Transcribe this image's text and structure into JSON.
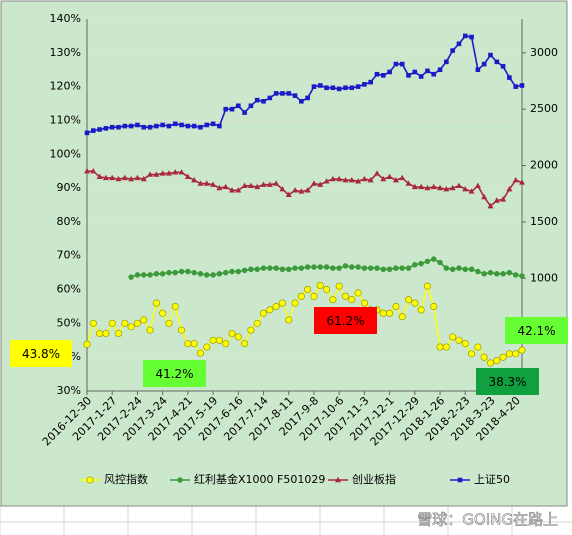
{
  "chart_data": {
    "type": "line",
    "categories": [
      "2016-12-30",
      null,
      null,
      null,
      "2017-1-27",
      null,
      null,
      null,
      "2017-2-24",
      null,
      null,
      null,
      "2017-3-24",
      null,
      null,
      null,
      "2017-4-21",
      null,
      null,
      null,
      "2017-5-19",
      null,
      null,
      null,
      "2017-6-16",
      null,
      null,
      null,
      "2017-7-14",
      null,
      null,
      null,
      "2017-8-11",
      null,
      null,
      null,
      "2017-9-8",
      null,
      null,
      null,
      "2017-10-6",
      null,
      null,
      null,
      "2017-11-3",
      null,
      null,
      null,
      "2017-12-1",
      null,
      null,
      null,
      "2017-12-29",
      null,
      null,
      null,
      "2018-1-26",
      null,
      null,
      null,
      "2018-2-23",
      null,
      null,
      null,
      "2018-3-23",
      null,
      null,
      null,
      "2018-4-20",
      null
    ],
    "ylim": [
      30,
      140
    ],
    "yticks": [
      {
        "value": 30,
        "label": "30%"
      },
      {
        "value": 40,
        "label": "40%"
      },
      {
        "value": 50,
        "label": "50%"
      },
      {
        "value": 60,
        "label": "60%"
      },
      {
        "value": 70,
        "label": "70%"
      },
      {
        "value": 80,
        "label": "80%"
      },
      {
        "value": 90,
        "label": "90%"
      },
      {
        "value": 100,
        "label": "100%"
      },
      {
        "value": 110,
        "label": "110%"
      },
      {
        "value": 120,
        "label": "120%"
      },
      {
        "value": 130,
        "label": "130%"
      },
      {
        "value": 140,
        "label": "140%"
      }
    ],
    "y2lim": [
      0,
      3300
    ],
    "y2ticks": [
      1000,
      1500,
      2000,
      2500,
      3000
    ],
    "grid": true,
    "legend": "bottom",
    "series": [
      {
        "name": "风控指数",
        "color": "#ffff00",
        "marker": "circle",
        "values": [
          43.8,
          50,
          47,
          47,
          50,
          47,
          50,
          49,
          50,
          51,
          48,
          56,
          53,
          50,
          55,
          48,
          44,
          44,
          41.2,
          43,
          45,
          45,
          44,
          47,
          46,
          44,
          48,
          50,
          53,
          54,
          55,
          56,
          51,
          56,
          58,
          60,
          58,
          61.2,
          60,
          57,
          61,
          58,
          57,
          59,
          56,
          54,
          54,
          53,
          53,
          55,
          52,
          57,
          56,
          54,
          61,
          55,
          43,
          43,
          46,
          45,
          44,
          41,
          43,
          40,
          38.3,
          39,
          40,
          41,
          41,
          42.1
        ]
      },
      {
        "name": "红利基金X1000 F501029",
        "color": "#3c9a3c",
        "marker": "dot",
        "axis": "y2",
        "values": [
          null,
          null,
          null,
          null,
          null,
          null,
          null,
          1010,
          1030,
          1030,
          1030,
          1040,
          1040,
          1050,
          1050,
          1060,
          1060,
          1050,
          1040,
          1030,
          1030,
          1040,
          1050,
          1060,
          1060,
          1070,
          1080,
          1080,
          1090,
          1090,
          1090,
          1080,
          1080,
          1090,
          1090,
          1100,
          1100,
          1100,
          1100,
          1090,
          1090,
          1110,
          1100,
          1100,
          1090,
          1090,
          1090,
          1080,
          1080,
          1090,
          1090,
          1090,
          1120,
          1130,
          1150,
          1170,
          1140,
          1090,
          1080,
          1090,
          1080,
          1080,
          1060,
          1040,
          1050,
          1040,
          1040,
          1050,
          1030,
          1020
        ]
      },
      {
        "name": "创业板指",
        "color": "#a8283c",
        "marker": "triangle",
        "axis": "y2",
        "values": [
          1950,
          1950,
          1900,
          1890,
          1890,
          1880,
          1890,
          1880,
          1890,
          1880,
          1920,
          1920,
          1930,
          1930,
          1940,
          1940,
          1900,
          1870,
          1840,
          1840,
          1830,
          1800,
          1810,
          1780,
          1780,
          1820,
          1820,
          1810,
          1830,
          1830,
          1840,
          1790,
          1740,
          1780,
          1770,
          1780,
          1840,
          1830,
          1860,
          1880,
          1880,
          1870,
          1870,
          1860,
          1880,
          1870,
          1930,
          1880,
          1900,
          1870,
          1890,
          1840,
          1810,
          1810,
          1800,
          1810,
          1800,
          1790,
          1800,
          1820,
          1790,
          1770,
          1820,
          1720,
          1640,
          1690,
          1700,
          1790,
          1870,
          1850
        ]
      },
      {
        "name": "上证50",
        "color": "#1a1ac8",
        "marker": "square",
        "axis": "y2",
        "values": [
          2290,
          2310,
          2320,
          2330,
          2340,
          2340,
          2350,
          2350,
          2360,
          2340,
          2340,
          2350,
          2360,
          2350,
          2370,
          2360,
          2350,
          2350,
          2340,
          2360,
          2370,
          2350,
          2500,
          2500,
          2530,
          2470,
          2530,
          2580,
          2570,
          2600,
          2640,
          2640,
          2640,
          2620,
          2570,
          2600,
          2700,
          2710,
          2690,
          2690,
          2680,
          2690,
          2690,
          2700,
          2720,
          2740,
          2810,
          2800,
          2830,
          2900,
          2900,
          2800,
          2830,
          2790,
          2840,
          2810,
          2850,
          2920,
          3020,
          3080,
          3150,
          3140,
          2850,
          2900,
          2980,
          2920,
          2880,
          2780,
          2700,
          2710
        ]
      }
    ],
    "annotations": [
      {
        "text": "43.8%",
        "color": "#ffff00"
      },
      {
        "text": "41.2%",
        "color": "#66ff33"
      },
      {
        "text": "61.2%",
        "color": "#ff0000"
      },
      {
        "text": "38.3%",
        "color": "#10a040"
      },
      {
        "text": "42.1%",
        "color": "#66ff33"
      }
    ],
    "watermark": "雪球：GOING在路上"
  }
}
